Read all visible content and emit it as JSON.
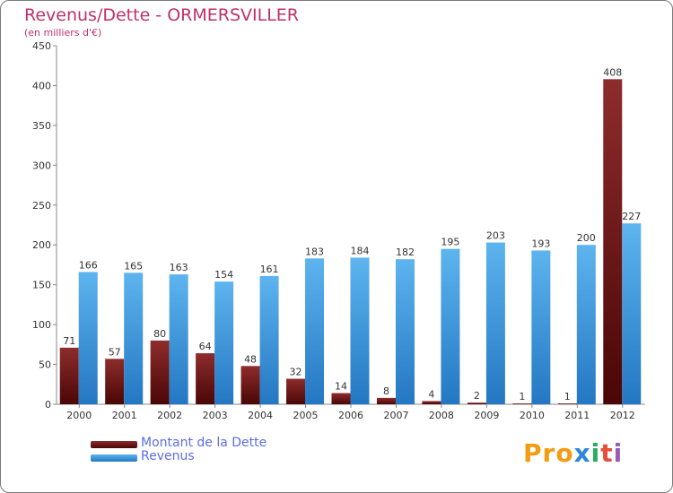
{
  "title": "Revenus/Dette - ORMERSVILLER",
  "subtitle": "(en milliers d'€)",
  "logo": {
    "text": "Proxiti",
    "letter_colors": [
      "#f39c12",
      "#f39c12",
      "#f39c12",
      "#2e86de",
      "#27ae60",
      "#e74c3c",
      "#9b59b6"
    ]
  },
  "colors": {
    "dette": "#7a1a1a",
    "revenus": "#3a9ee4",
    "axis_text": "#333333",
    "title": "#c0306a",
    "legend_text": "#5b6de8"
  },
  "chart_data": {
    "type": "bar",
    "title": "Revenus/Dette - ORMERSVILLER",
    "ylabel": "(en milliers d'€)",
    "xlabel": "",
    "categories": [
      "2000",
      "2001",
      "2002",
      "2003",
      "2004",
      "2005",
      "2006",
      "2007",
      "2008",
      "2009",
      "2010",
      "2011",
      "2012"
    ],
    "series": [
      {
        "name": "Montant de la Dette",
        "values": [
          71,
          57,
          80,
          64,
          48,
          32,
          14,
          8,
          4,
          2,
          1,
          1,
          408
        ]
      },
      {
        "name": "Revenus",
        "values": [
          166,
          165,
          163,
          154,
          161,
          183,
          184,
          182,
          195,
          203,
          193,
          200,
          227
        ]
      }
    ],
    "ylim": [
      0,
      450
    ],
    "yticks": [
      0,
      50,
      100,
      150,
      200,
      250,
      300,
      350,
      400,
      450
    ],
    "legend": "bottom-left",
    "grid": false
  }
}
